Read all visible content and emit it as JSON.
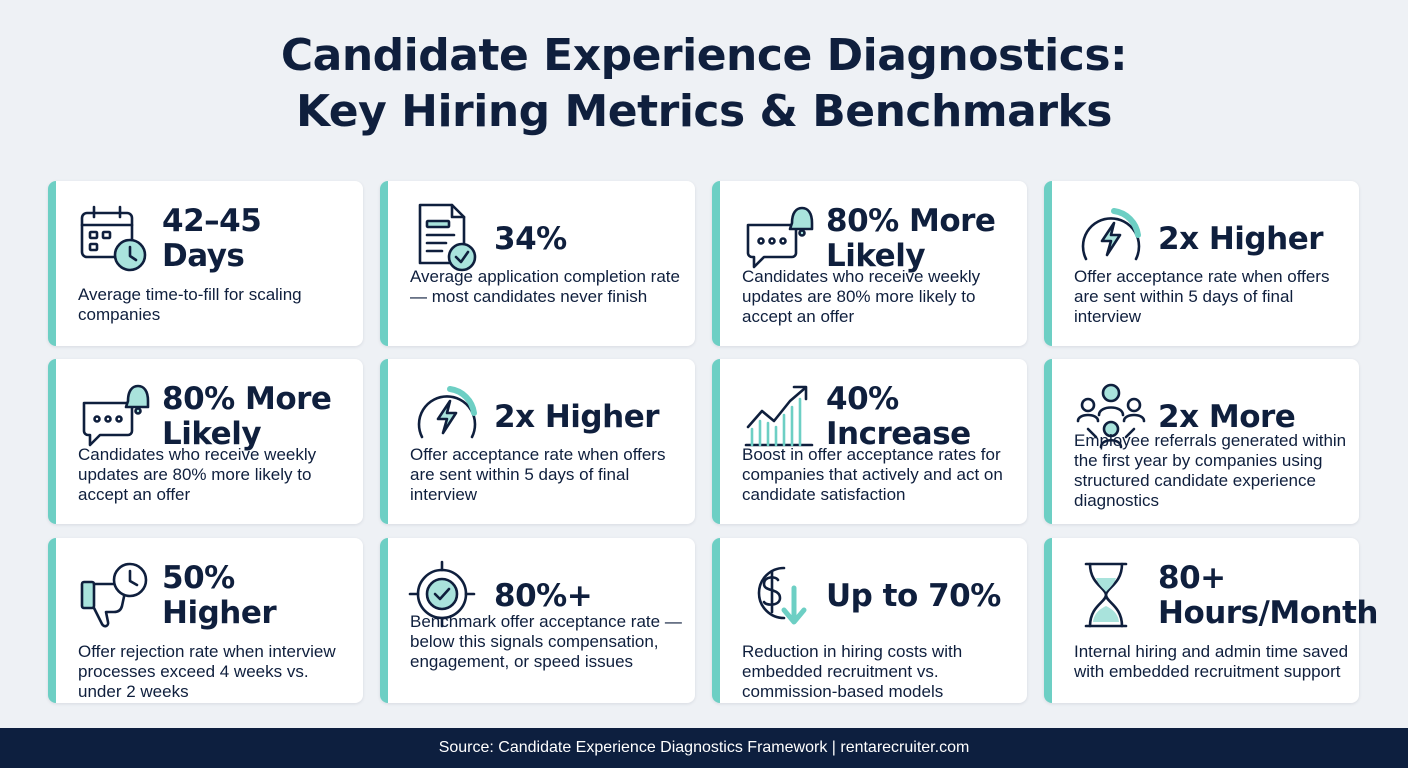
{
  "title": {
    "line1": "Candidate Experience Diagnostics:",
    "line2": "Key Hiring Metrics & Benchmarks"
  },
  "colors": {
    "accent": "#6dcfc4",
    "navy": "#0f1f3d",
    "background": "#eef1f5",
    "footer": "#0d1f3f"
  },
  "cards": [
    {
      "icon": "calendar-clock-icon",
      "value": "42–45\nDays",
      "description": "Average time-to-fill for scaling companies"
    },
    {
      "icon": "document-check-icon",
      "value": "34%",
      "description": "Average application completion rate — most candidates never finish"
    },
    {
      "icon": "chat-bell-icon",
      "value": "80% More\nLikely",
      "description": "Candidates who receive weekly updates are 80% more likely to accept an offer"
    },
    {
      "icon": "speed-gauge-icon",
      "value": "2x Higher",
      "description": "Offer acceptance rate when offers are sent within 5 days of final interview"
    },
    {
      "icon": "chat-bell-icon",
      "value": "80% More\nLikely",
      "description": "Candidates who receive weekly updates are 80% more likely to accept an offer"
    },
    {
      "icon": "speed-gauge-icon",
      "value": "2x Higher",
      "description": "Offer acceptance rate when offers are sent within 5 days of final interview"
    },
    {
      "icon": "growth-chart-icon",
      "value": "40%\nIncrease",
      "description": "Boost in offer acceptance rates for companies that actively and act on candidate satisfaction"
    },
    {
      "icon": "people-network-icon",
      "value": "2x More",
      "description": "Employee referrals generated within the first year by companies using structured candidate experience diagnostics"
    },
    {
      "icon": "thumbs-down-clock-icon",
      "value": "50%\nHigher",
      "description": "Offer rejection rate when interview processes exceed 4 weeks vs. under 2 weeks"
    },
    {
      "icon": "target-check-icon",
      "value": "80%+",
      "description": "Benchmark offer acceptance rate — below this signals compensation, engagement, or speed issues"
    },
    {
      "icon": "dollar-down-icon",
      "value": "Up to 70%",
      "description": "Reduction in hiring costs with embedded recruitment vs. commission-based models"
    },
    {
      "icon": "hourglass-icon",
      "value": "80+\nHours/Month",
      "description": "Internal hiring and admin time saved with embedded recruitment support"
    }
  ],
  "footer": {
    "text": "Source: Candidate Experience Diagnostics Framework | rentarecruiter.com"
  }
}
